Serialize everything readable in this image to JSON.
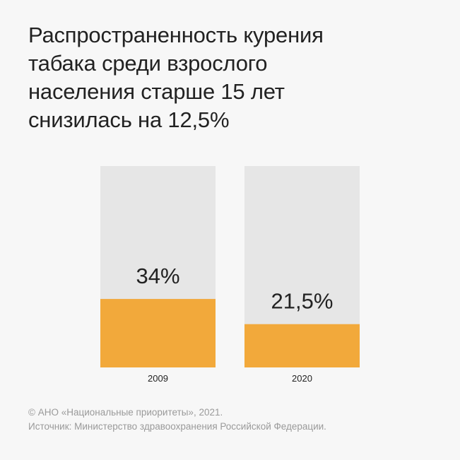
{
  "title": "Распространенность курения\nтабака среди взрослого\nнаселения старше 15 лет\nснизилась на 12,5%",
  "colors": {
    "background": "#f7f7f7",
    "bar_track": "#e6e6e6",
    "bar_fill": "#f2a93b",
    "text": "#222222",
    "footer_text": "#9a9a9a"
  },
  "chart_data": {
    "type": "bar",
    "categories": [
      "2009",
      "2020"
    ],
    "values": [
      34,
      21.5
    ],
    "data_labels": [
      "34%",
      "21,5%"
    ],
    "ylim": [
      0,
      100
    ],
    "xlabel": "",
    "ylabel": "",
    "grid": false
  },
  "footer": {
    "copyright": "© АНО «Национальные приоритеты», 2021.",
    "source": "Источник: Министерство здравоохранения Российской Федерации."
  }
}
